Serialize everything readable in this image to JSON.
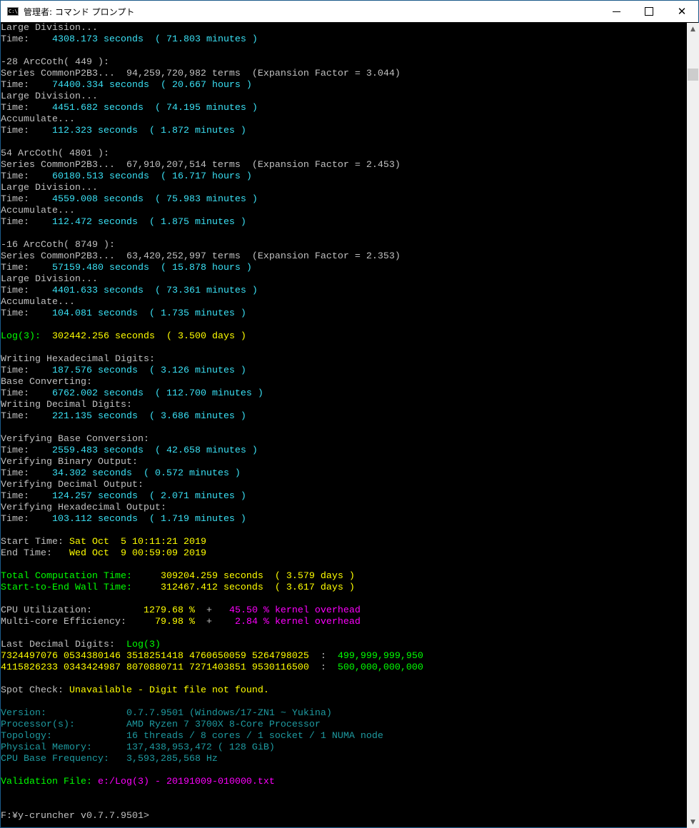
{
  "window": {
    "title": "管理者: コマンド プロンプト",
    "icon": "cmd-icon",
    "icon_text": "C:\\.",
    "controls": {
      "minimize": "minimize-icon",
      "maximize": "maximize-icon",
      "close": "close-icon",
      "close_glyph": "✕"
    }
  },
  "colors": {
    "w": "#c0c0c0",
    "c": "#3ae0f4",
    "y": "#ffff00",
    "g": "#00ff00",
    "m": "#ff00ff",
    "t": "#1e9aa0"
  },
  "scrollbar": {
    "up": "▲",
    "down": "▼",
    "position_fraction": 0.98
  },
  "console": {
    "lines": [
      [
        {
          "t": "Large Division...",
          "c": "w"
        }
      ],
      [
        {
          "t": "Time:",
          "c": "w"
        },
        {
          "t": "    4308.173 seconds  ( 71.803 minutes )",
          "c": "c"
        }
      ],
      [],
      [
        {
          "t": "-28 ArcCoth( 449 ):",
          "c": "w"
        }
      ],
      [
        {
          "t": "Series CommonP2B3...  94,259,720,982 terms  (Expansion Factor = 3.044)",
          "c": "w"
        }
      ],
      [
        {
          "t": "Time:",
          "c": "w"
        },
        {
          "t": "    74400.334 seconds  ( 20.667 hours )",
          "c": "c"
        }
      ],
      [
        {
          "t": "Large Division...",
          "c": "w"
        }
      ],
      [
        {
          "t": "Time:",
          "c": "w"
        },
        {
          "t": "    4451.682 seconds  ( 74.195 minutes )",
          "c": "c"
        }
      ],
      [
        {
          "t": "Accumulate...",
          "c": "w"
        }
      ],
      [
        {
          "t": "Time:",
          "c": "w"
        },
        {
          "t": "    112.323 seconds  ( 1.872 minutes )",
          "c": "c"
        }
      ],
      [],
      [
        {
          "t": "54 ArcCoth( 4801 ):",
          "c": "w"
        }
      ],
      [
        {
          "t": "Series CommonP2B3...  67,910,207,514 terms  (Expansion Factor = 2.453)",
          "c": "w"
        }
      ],
      [
        {
          "t": "Time:",
          "c": "w"
        },
        {
          "t": "    60180.513 seconds  ( 16.717 hours )",
          "c": "c"
        }
      ],
      [
        {
          "t": "Large Division...",
          "c": "w"
        }
      ],
      [
        {
          "t": "Time:",
          "c": "w"
        },
        {
          "t": "    4559.008 seconds  ( 75.983 minutes )",
          "c": "c"
        }
      ],
      [
        {
          "t": "Accumulate...",
          "c": "w"
        }
      ],
      [
        {
          "t": "Time:",
          "c": "w"
        },
        {
          "t": "    112.472 seconds  ( 1.875 minutes )",
          "c": "c"
        }
      ],
      [],
      [
        {
          "t": "-16 ArcCoth( 8749 ):",
          "c": "w"
        }
      ],
      [
        {
          "t": "Series CommonP2B3...  63,420,252,997 terms  (Expansion Factor = 2.353)",
          "c": "w"
        }
      ],
      [
        {
          "t": "Time:",
          "c": "w"
        },
        {
          "t": "    57159.480 seconds  ( 15.878 hours )",
          "c": "c"
        }
      ],
      [
        {
          "t": "Large Division...",
          "c": "w"
        }
      ],
      [
        {
          "t": "Time:",
          "c": "w"
        },
        {
          "t": "    4401.633 seconds  ( 73.361 minutes )",
          "c": "c"
        }
      ],
      [
        {
          "t": "Accumulate...",
          "c": "w"
        }
      ],
      [
        {
          "t": "Time:",
          "c": "w"
        },
        {
          "t": "    104.081 seconds  ( 1.735 minutes )",
          "c": "c"
        }
      ],
      [],
      [
        {
          "t": "Log(3):",
          "c": "g"
        },
        {
          "t": "  302442.256 seconds  ( 3.500 days )",
          "c": "y"
        }
      ],
      [],
      [
        {
          "t": "Writing Hexadecimal Digits:",
          "c": "w"
        }
      ],
      [
        {
          "t": "Time:",
          "c": "w"
        },
        {
          "t": "    187.576 seconds  ( 3.126 minutes )",
          "c": "c"
        }
      ],
      [
        {
          "t": "Base Converting:",
          "c": "w"
        }
      ],
      [
        {
          "t": "Time:",
          "c": "w"
        },
        {
          "t": "    6762.002 seconds  ( 112.700 minutes )",
          "c": "c"
        }
      ],
      [
        {
          "t": "Writing Decimal Digits:",
          "c": "w"
        }
      ],
      [
        {
          "t": "Time:",
          "c": "w"
        },
        {
          "t": "    221.135 seconds  ( 3.686 minutes )",
          "c": "c"
        }
      ],
      [],
      [
        {
          "t": "Verifying Base Conversion:",
          "c": "w"
        }
      ],
      [
        {
          "t": "Time:",
          "c": "w"
        },
        {
          "t": "    2559.483 seconds  ( 42.658 minutes )",
          "c": "c"
        }
      ],
      [
        {
          "t": "Verifying Binary Output:",
          "c": "w"
        }
      ],
      [
        {
          "t": "Time:",
          "c": "w"
        },
        {
          "t": "    34.302 seconds  ( 0.572 minutes )",
          "c": "c"
        }
      ],
      [
        {
          "t": "Verifying Decimal Output:",
          "c": "w"
        }
      ],
      [
        {
          "t": "Time:",
          "c": "w"
        },
        {
          "t": "    124.257 seconds  ( 2.071 minutes )",
          "c": "c"
        }
      ],
      [
        {
          "t": "Verifying Hexadecimal Output:",
          "c": "w"
        }
      ],
      [
        {
          "t": "Time:",
          "c": "w"
        },
        {
          "t": "    103.112 seconds  ( 1.719 minutes )",
          "c": "c"
        }
      ],
      [],
      [
        {
          "t": "Start Time: ",
          "c": "w"
        },
        {
          "t": "Sat Oct  5 10:11:21 2019",
          "c": "y"
        }
      ],
      [
        {
          "t": "End Time:   ",
          "c": "w"
        },
        {
          "t": "Wed Oct  9 00:59:09 2019",
          "c": "y"
        }
      ],
      [],
      [
        {
          "t": "Total Computation Time:",
          "c": "g"
        },
        {
          "t": "     309204.259 seconds  ( 3.579 days )",
          "c": "y"
        }
      ],
      [
        {
          "t": "Start-to-End Wall Time:",
          "c": "g"
        },
        {
          "t": "     312467.412 seconds  ( 3.617 days )",
          "c": "y"
        }
      ],
      [],
      [
        {
          "t": "CPU Utilization:         ",
          "c": "w"
        },
        {
          "t": "1279.68 %",
          "c": "y"
        },
        {
          "t": "  +   ",
          "c": "w"
        },
        {
          "t": "45.50 % kernel overhead",
          "c": "m"
        }
      ],
      [
        {
          "t": "Multi-core Efficiency:     ",
          "c": "w"
        },
        {
          "t": "79.98 %",
          "c": "y"
        },
        {
          "t": "  +    ",
          "c": "w"
        },
        {
          "t": "2.84 % kernel overhead",
          "c": "m"
        }
      ],
      [],
      [
        {
          "t": "Last Decimal Digits:  ",
          "c": "w"
        },
        {
          "t": "Log(3)",
          "c": "g"
        }
      ],
      [
        {
          "t": "7324497076 0534380146 3518251418 4760650059 5264798025",
          "c": "y"
        },
        {
          "t": "  :  ",
          "c": "w"
        },
        {
          "t": "499,999,999,950",
          "c": "g"
        }
      ],
      [
        {
          "t": "4115826233 0343424987 8070880711 7271403851 9530116500",
          "c": "y"
        },
        {
          "t": "  :  ",
          "c": "w"
        },
        {
          "t": "500,000,000,000",
          "c": "g"
        }
      ],
      [],
      [
        {
          "t": "Spot Check: ",
          "c": "w"
        },
        {
          "t": "Unavailable - Digit file not found.",
          "c": "y"
        }
      ],
      [],
      [
        {
          "t": "Version:              0.7.7.9501 (Windows/17-ZN1 ~ Yukina)",
          "c": "t"
        }
      ],
      [
        {
          "t": "Processor(s):         AMD Ryzen 7 3700X 8-Core Processor",
          "c": "t"
        }
      ],
      [
        {
          "t": "Topology:             16 threads / 8 cores / 1 socket / 1 NUMA node",
          "c": "t"
        }
      ],
      [
        {
          "t": "Physical Memory:      137,438,953,472 ( 128 GiB)",
          "c": "t"
        }
      ],
      [
        {
          "t": "CPU Base Frequency:   3,593,285,568 Hz",
          "c": "t"
        }
      ],
      [],
      [
        {
          "t": "Validation File: ",
          "c": "g"
        },
        {
          "t": "e:/Log(3) - 20191009-010000.txt",
          "c": "m"
        }
      ],
      [],
      [],
      [
        {
          "t": "F:¥y-cruncher v0.7.7.9501>",
          "c": "w"
        }
      ]
    ]
  }
}
